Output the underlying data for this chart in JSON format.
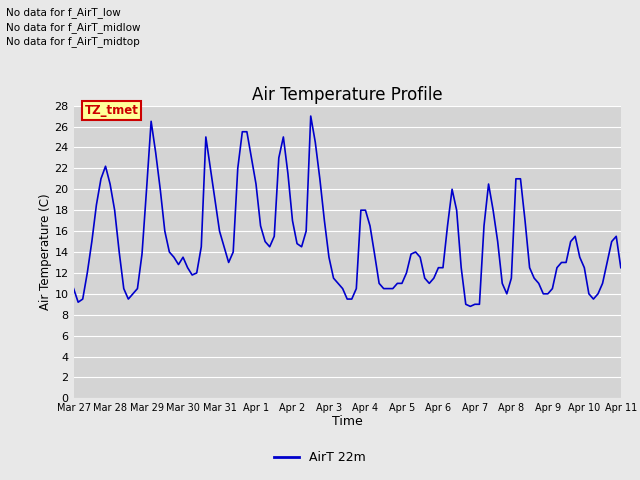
{
  "title": "Air Temperature Profile",
  "xlabel": "Time",
  "ylabel": "Air Temperature (C)",
  "legend_label": "AirT 22m",
  "line_color": "#0000cc",
  "background_color": "#e8e8e8",
  "plot_bg_color": "#d4d4d4",
  "ylim": [
    0,
    28
  ],
  "yticks": [
    0,
    2,
    4,
    6,
    8,
    10,
    12,
    14,
    16,
    18,
    20,
    22,
    24,
    26,
    28
  ],
  "annotations_top_left": [
    "No data for f_AirT_low",
    "No data for f_AirT_midlow",
    "No data for f_AirT_midtop"
  ],
  "x_tick_labels": [
    "Mar 27",
    "Mar 28",
    "Mar 29",
    "Mar 30",
    "Mar 31",
    "Apr 1",
    "Apr 2",
    "Apr 3",
    "Apr 4",
    "Apr 5",
    "Apr 6",
    "Apr 7",
    "Apr 8",
    "Apr 9",
    "Apr 10",
    "Apr 11"
  ],
  "time_data": [
    0.0,
    0.125,
    0.25,
    0.375,
    0.5,
    0.625,
    0.75,
    0.875,
    1.0,
    1.125,
    1.25,
    1.375,
    1.5,
    1.625,
    1.75,
    1.875,
    2.0,
    2.125,
    2.25,
    2.375,
    2.5,
    2.625,
    2.75,
    2.875,
    3.0,
    3.125,
    3.25,
    3.375,
    3.5,
    3.625,
    3.75,
    3.875,
    4.0,
    4.125,
    4.25,
    4.375,
    4.5,
    4.625,
    4.75,
    4.875,
    5.0,
    5.125,
    5.25,
    5.375,
    5.5,
    5.625,
    5.75,
    5.875,
    6.0,
    6.125,
    6.25,
    6.375,
    6.5,
    6.625,
    6.75,
    6.875,
    7.0,
    7.125,
    7.25,
    7.375,
    7.5,
    7.625,
    7.75,
    7.875,
    8.0,
    8.125,
    8.25,
    8.375,
    8.5,
    8.625,
    8.75,
    8.875,
    9.0,
    9.125,
    9.25,
    9.375,
    9.5,
    9.625,
    9.75,
    9.875,
    10.0,
    10.125,
    10.25,
    10.375,
    10.5,
    10.625,
    10.75,
    10.875,
    11.0,
    11.125,
    11.25,
    11.375,
    11.5,
    11.625,
    11.75,
    11.875,
    12.0,
    12.125,
    12.25,
    12.375,
    12.5,
    12.625,
    12.75,
    12.875,
    13.0,
    13.125,
    13.25,
    13.375,
    13.5,
    13.625,
    13.75,
    13.875,
    14.0,
    14.125,
    14.25,
    14.375,
    14.5,
    14.625,
    14.75,
    14.875,
    15.0
  ],
  "temp_data": [
    10.5,
    9.2,
    9.5,
    12.0,
    15.0,
    18.5,
    21.0,
    22.2,
    20.5,
    18.0,
    14.0,
    10.5,
    9.5,
    10.0,
    10.5,
    13.8,
    20.0,
    26.5,
    23.5,
    20.0,
    16.0,
    14.0,
    13.5,
    12.8,
    13.5,
    12.5,
    11.8,
    12.0,
    14.5,
    25.0,
    22.0,
    19.0,
    16.0,
    14.5,
    13.0,
    14.0,
    22.0,
    25.5,
    25.5,
    23.0,
    20.5,
    16.5,
    15.0,
    14.5,
    15.5,
    23.0,
    25.0,
    21.5,
    17.0,
    14.8,
    14.5,
    16.0,
    27.0,
    24.5,
    21.0,
    17.0,
    13.5,
    11.5,
    11.0,
    10.5,
    9.5,
    9.5,
    10.5,
    18.0,
    18.0,
    16.5,
    13.8,
    11.0,
    10.5,
    10.5,
    10.5,
    11.0,
    11.0,
    12.0,
    13.8,
    14.0,
    13.5,
    11.5,
    11.0,
    11.5,
    12.5,
    12.5,
    16.5,
    20.0,
    18.0,
    12.5,
    9.0,
    8.8,
    9.0,
    9.0,
    16.5,
    20.5,
    18.0,
    15.0,
    11.0,
    10.0,
    11.5,
    21.0,
    21.0,
    17.0,
    12.5,
    11.5,
    11.0,
    10.0,
    10.0,
    10.5,
    12.5,
    13.0,
    13.0,
    15.0,
    15.5,
    13.5,
    12.5,
    10.0,
    9.5,
    10.0,
    11.0,
    13.0,
    15.0,
    15.5,
    12.5
  ]
}
